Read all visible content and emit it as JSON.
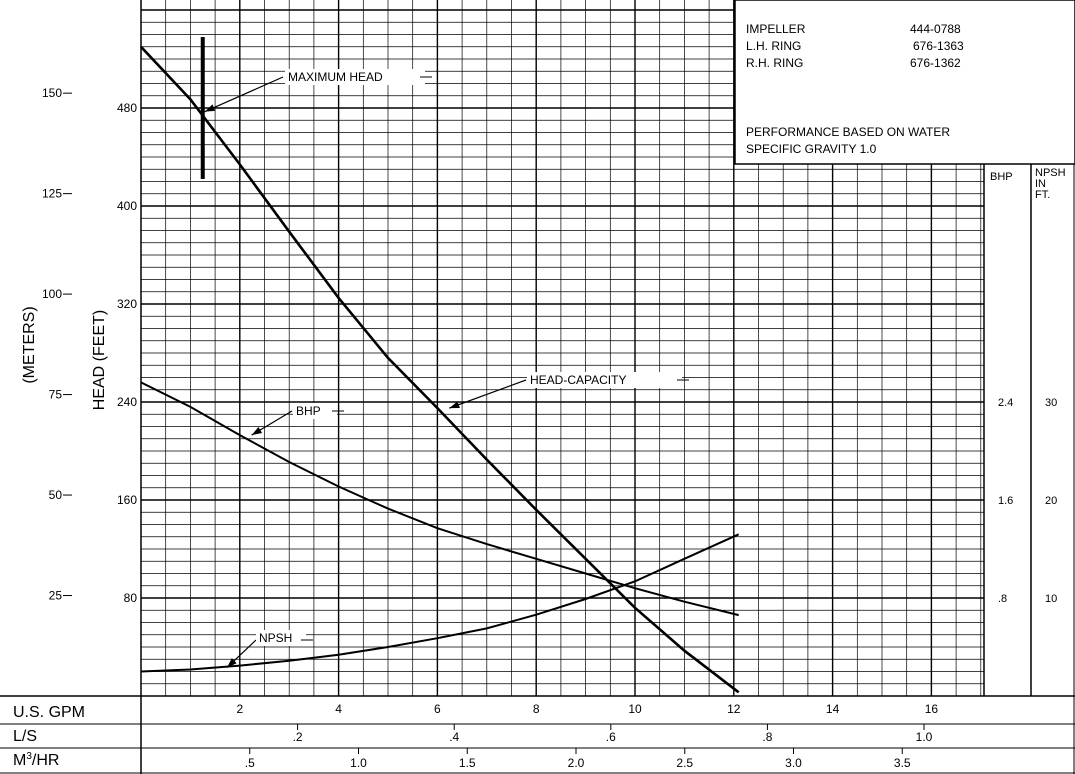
{
  "chart_data": {
    "type": "line",
    "title": "",
    "x_axis": {
      "label": "U.S. GPM",
      "ticks": [
        "2",
        "4",
        "6",
        "8",
        "10",
        "12",
        "14",
        "16"
      ],
      "xlim": [
        0,
        17.5
      ]
    },
    "secondary_x_axes": [
      {
        "label": "L/S",
        "ticks": [
          ".2",
          ".4",
          ".6",
          ".8",
          "1.0"
        ]
      },
      {
        "label": "M³/HR",
        "label_base": "M",
        "label_sup": "3",
        "label_rest": "/HR",
        "ticks": [
          ".5",
          "1.0",
          "1.5",
          "2.0",
          "2.5",
          "3.0",
          "3.5"
        ]
      }
    ],
    "y_axis": {
      "label": "HEAD (FEET)",
      "ticks": [
        "80",
        "160",
        "240",
        "320",
        "400",
        "480"
      ],
      "ylim": [
        0,
        520
      ]
    },
    "y_axis_meters": {
      "label": "(METERS)",
      "ticks": [
        "25",
        "50",
        "75",
        "100",
        "125",
        "150"
      ]
    },
    "bhp_axis": {
      "label": "BHP",
      "ticks": [
        ".8",
        "1.6",
        "2.4"
      ]
    },
    "npsh_axis": {
      "label_lines": [
        "NPSH",
        "IN",
        "FT."
      ],
      "ticks": [
        "10",
        "20",
        "30"
      ]
    },
    "series": [
      {
        "name": "HEAD-CAPACITY",
        "units": "feet",
        "x": [
          0,
          1,
          2,
          3,
          4,
          5,
          6,
          7,
          8,
          9,
          10,
          11,
          12.1
        ],
        "y": [
          530,
          487,
          434,
          379,
          325,
          276,
          235,
          193,
          152,
          112,
          72,
          37,
          3
        ]
      },
      {
        "name": "BHP",
        "units": "hp",
        "x": [
          0,
          1,
          2,
          3,
          4,
          5,
          6,
          7,
          8,
          9,
          10,
          11,
          12.1
        ],
        "y": [
          2.56,
          2.36,
          2.13,
          1.91,
          1.71,
          1.53,
          1.37,
          1.24,
          1.12,
          1.0,
          0.88,
          0.77,
          0.66
        ]
      },
      {
        "name": "NPSH",
        "units": "ft",
        "x": [
          0,
          1,
          2,
          3,
          4,
          5,
          6,
          7,
          8,
          9,
          10,
          11,
          12.1
        ],
        "y": [
          2.5,
          2.7,
          3.1,
          3.6,
          4.2,
          5.0,
          5.9,
          6.9,
          8.3,
          9.9,
          11.7,
          14.0,
          16.5
        ]
      }
    ],
    "annotations": [
      {
        "text": "MAXIMUM HEAD",
        "x": 1.25,
        "y": 477,
        "series": "max-head"
      },
      {
        "text": "HEAD-CAPACITY",
        "x": 6.2,
        "y": 235,
        "series": "HEAD-CAPACITY"
      },
      {
        "text": "BHP",
        "x": 2.2,
        "y": 2.13,
        "series": "BHP"
      },
      {
        "text": "NPSH",
        "x": 1.7,
        "y": 2.9,
        "series": "NPSH"
      }
    ],
    "max_head_marker": {
      "x": 1.25,
      "y_range": [
        422,
        538
      ]
    }
  },
  "info_box": {
    "rows": [
      {
        "label": "IMPELLER",
        "value": "444-0788"
      },
      {
        "label": "L.H. RING",
        "value": "676-1363"
      },
      {
        "label": "R.H. RING",
        "value": "676-1362"
      }
    ],
    "note_line1": "PERFORMANCE BASED ON WATER",
    "note_line2": "SPECIFIC GRAVITY 1.0"
  }
}
